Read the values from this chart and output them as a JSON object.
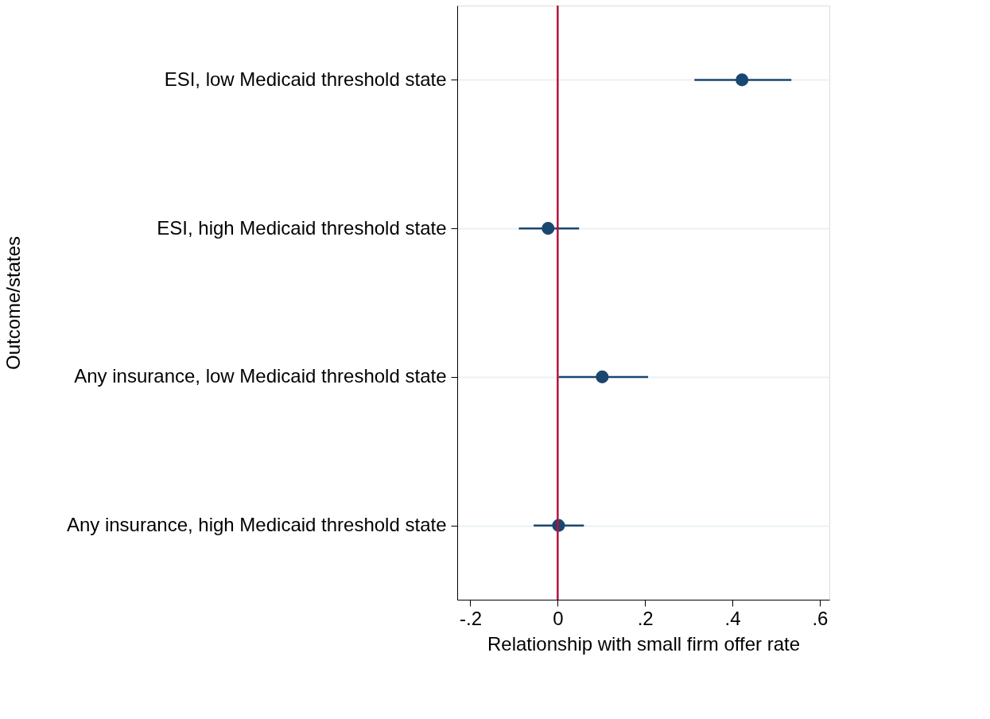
{
  "chart_data": {
    "type": "scatter",
    "xlabel": "Relationship with small firm offer rate",
    "ylabel": "Outcome/states",
    "categories": [
      "ESI, low Medicaid threshold state",
      "ESI, high Medicaid threshold state",
      "Any insurance, low Medicaid threshold state",
      "Any insurance, high Medicaid threshold state"
    ],
    "orientation": "horizontal",
    "series": [
      {
        "color": "#1a476f",
        "values": [
          0.422,
          -0.022,
          0.102,
          0.002
        ],
        "errors": [
          [
            0.313,
            0.535
          ],
          [
            -0.089,
            0.049
          ],
          [
            0.002,
            0.207
          ],
          [
            -0.055,
            0.06
          ]
        ]
      }
    ],
    "xlim": [
      -0.23,
      0.622
    ],
    "xticks": [
      {
        "value": -0.2,
        "label": "-.2"
      },
      {
        "value": 0,
        "label": "0"
      },
      {
        "value": 0.2,
        "label": ".2"
      },
      {
        "value": 0.4,
        "label": ".4"
      },
      {
        "value": 0.6,
        "label": ".6"
      }
    ],
    "ref_lines": [
      {
        "axis": "x",
        "value": 0,
        "color": "#b5123b"
      }
    ],
    "grid": "y",
    "marker": "circle",
    "legend": false
  }
}
